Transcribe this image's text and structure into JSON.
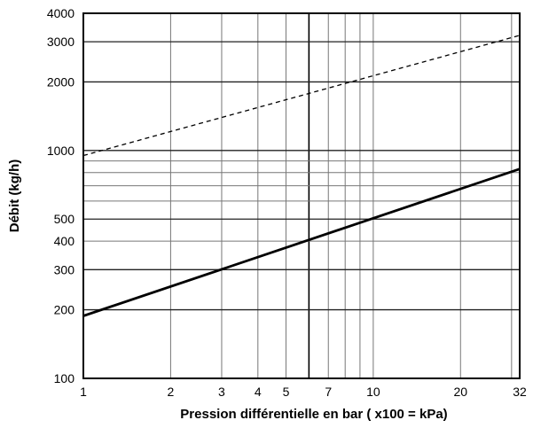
{
  "chart_data": {
    "type": "line",
    "title": "",
    "xlabel": "Pression différentielle en bar ( x100 = kPa)",
    "ylabel": "Débit (kg/h)",
    "xscale": "log",
    "yscale": "log",
    "xlim": [
      1,
      32
    ],
    "ylim": [
      100,
      4000
    ],
    "grid": true,
    "x_ticks": [
      "1",
      "2",
      "3",
      "4",
      "5",
      "7",
      "10",
      "20",
      "32"
    ],
    "y_ticks": [
      "100",
      "200",
      "300",
      "400",
      "500",
      "1000",
      "2000",
      "3000",
      "4000"
    ],
    "x_gridlines": [
      1,
      2,
      3,
      4,
      5,
      6,
      7,
      8,
      9,
      10,
      20,
      30,
      32
    ],
    "y_gridlines": [
      100,
      200,
      300,
      400,
      500,
      600,
      700,
      800,
      900,
      1000,
      2000,
      3000,
      4000
    ],
    "series": [
      {
        "style": "solid",
        "color": "#000000",
        "x": [
          1,
          32
        ],
        "y": [
          188,
          830
        ]
      },
      {
        "style": "dashed",
        "color": "#000000",
        "x": [
          1,
          32
        ],
        "y": [
          950,
          3200
        ]
      }
    ]
  }
}
